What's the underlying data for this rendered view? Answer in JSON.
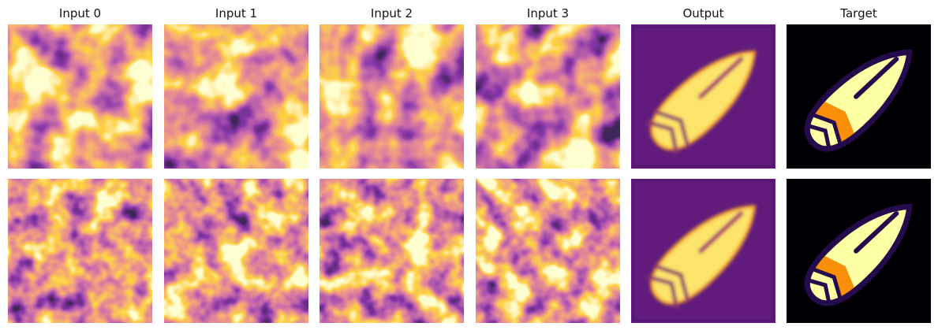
{
  "panels": {
    "titles": [
      "Input 0",
      "Input 1",
      "Input 2",
      "Input 3",
      "Output",
      "Target"
    ]
  }
}
